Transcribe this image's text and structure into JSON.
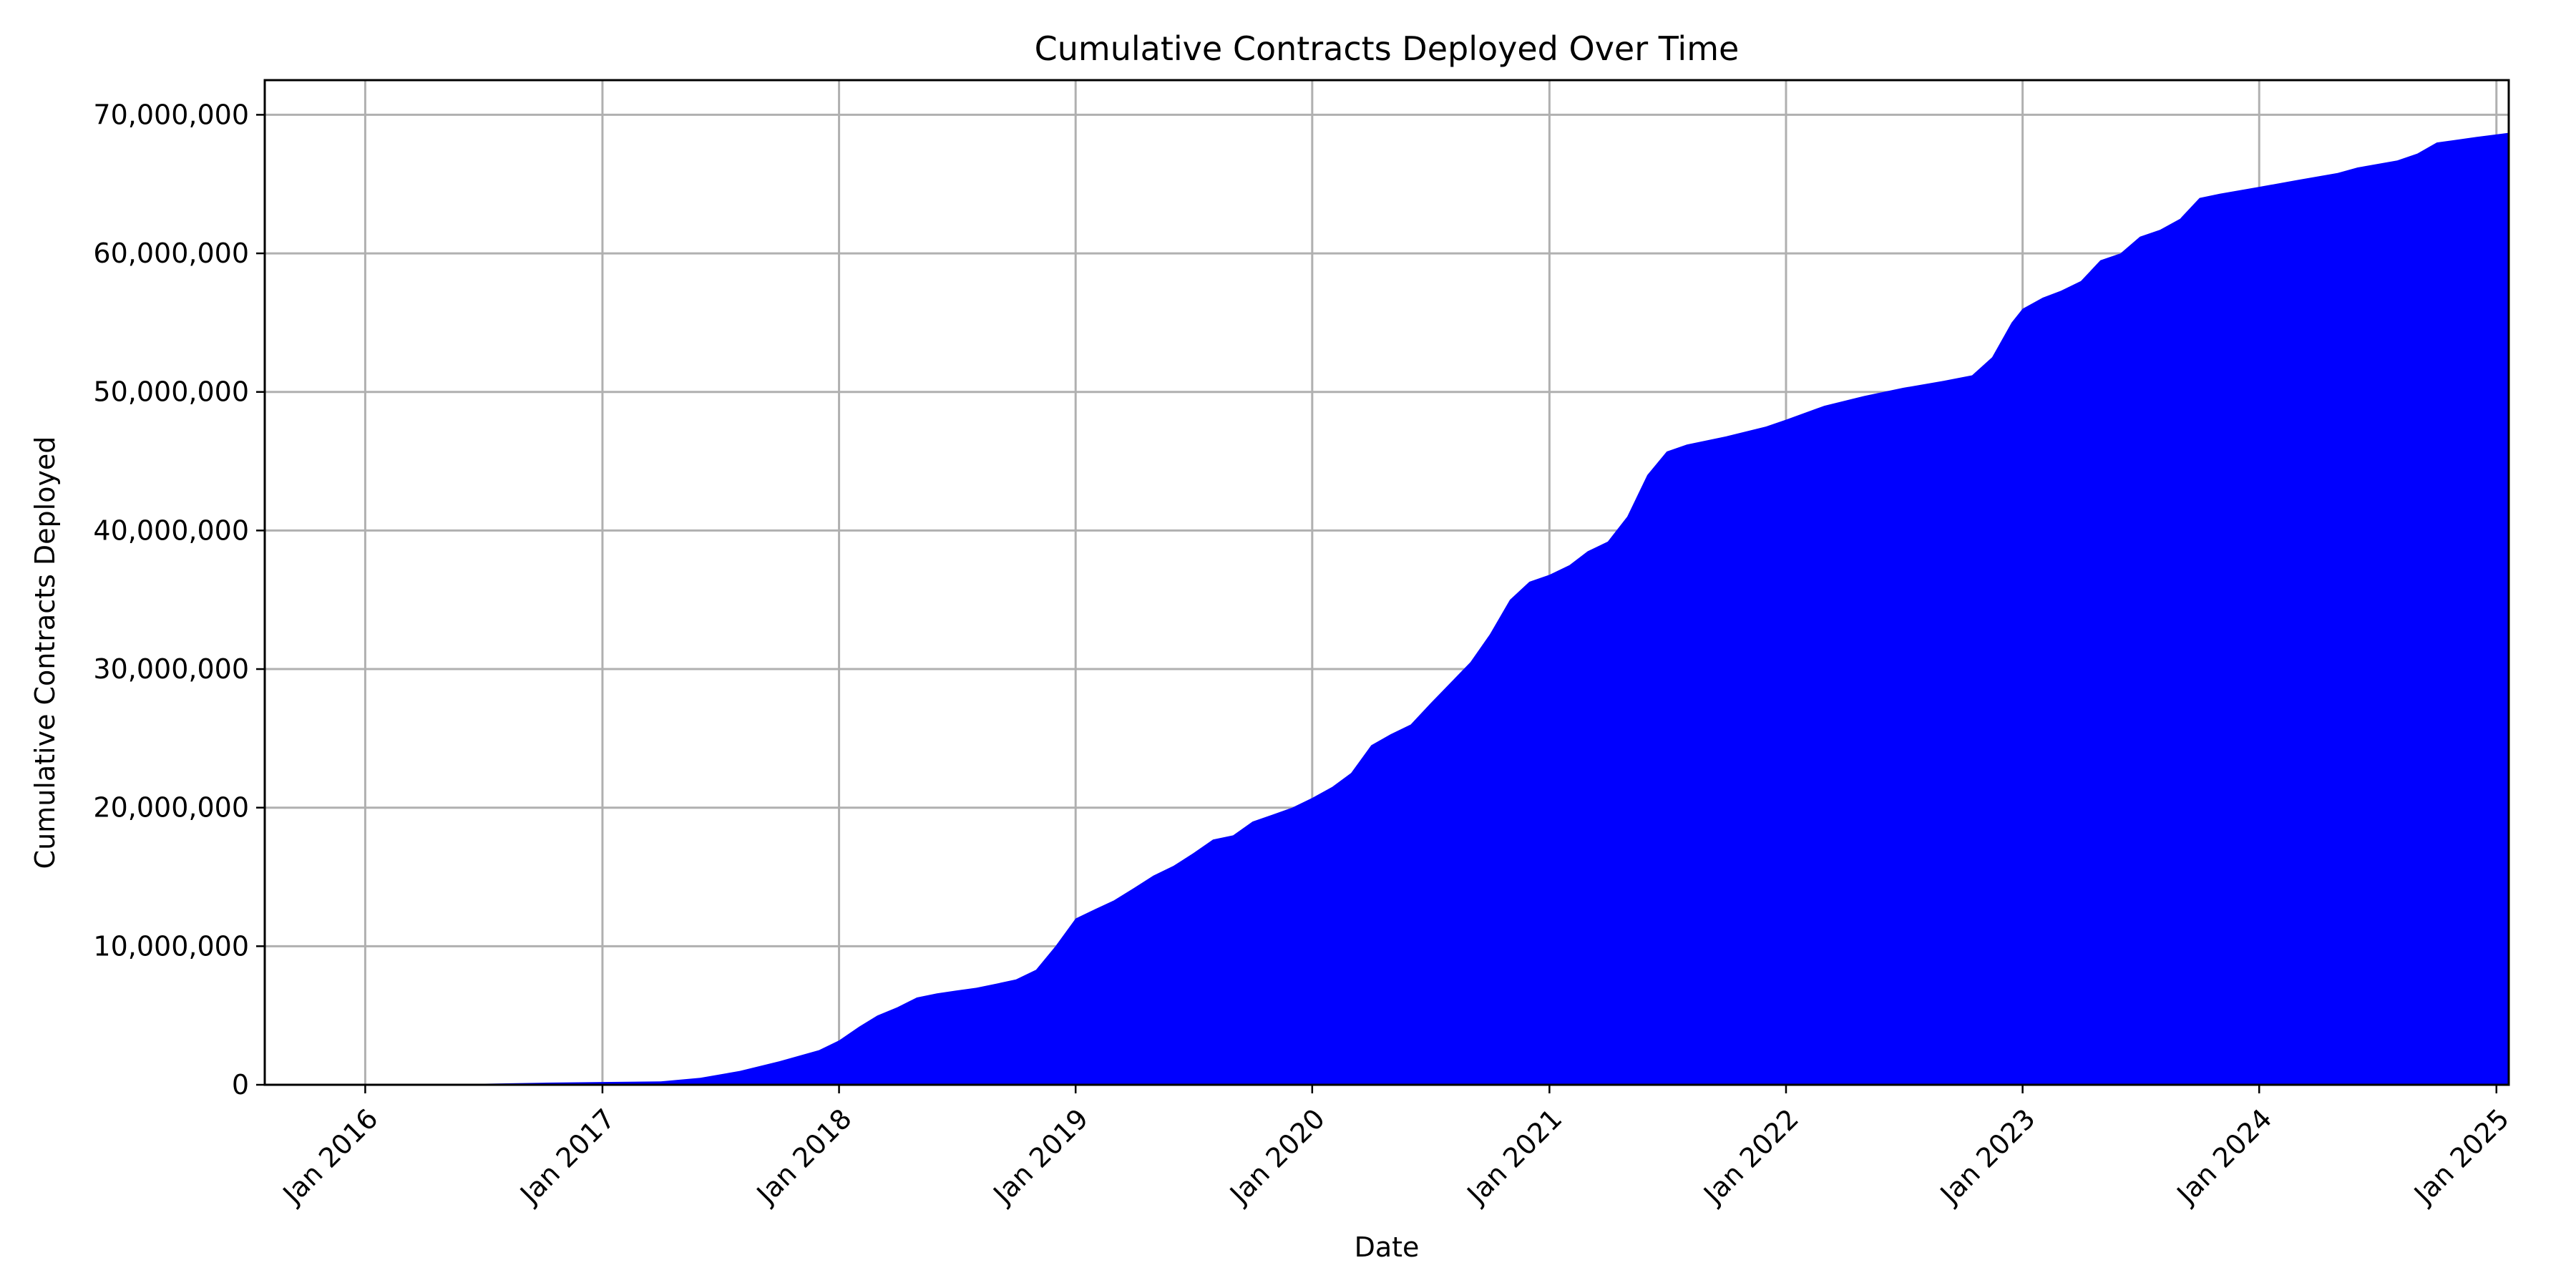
{
  "chart_data": {
    "type": "area",
    "title": "Cumulative Contracts Deployed Over Time",
    "xlabel": "Date",
    "ylabel": "Cumulative Contracts Deployed",
    "fill_color": "#0000ff",
    "grid": true,
    "legend": "none",
    "xlim": [
      "2015-07-30",
      "2025-01-20"
    ],
    "ylim": [
      0,
      72500000
    ],
    "x_ticks": [
      {
        "date": "2016-01-01",
        "label": "Jan 2016"
      },
      {
        "date": "2017-01-01",
        "label": "Jan 2017"
      },
      {
        "date": "2018-01-01",
        "label": "Jan 2018"
      },
      {
        "date": "2019-01-01",
        "label": "Jan 2019"
      },
      {
        "date": "2020-01-01",
        "label": "Jan 2020"
      },
      {
        "date": "2021-01-01",
        "label": "Jan 2021"
      },
      {
        "date": "2022-01-01",
        "label": "Jan 2022"
      },
      {
        "date": "2023-01-01",
        "label": "Jan 2023"
      },
      {
        "date": "2024-01-01",
        "label": "Jan 2024"
      },
      {
        "date": "2025-01-01",
        "label": "Jan 2025"
      }
    ],
    "y_ticks": [
      {
        "value": 0,
        "label": "0"
      },
      {
        "value": 10000000,
        "label": "10,000,000"
      },
      {
        "value": 20000000,
        "label": "20,000,000"
      },
      {
        "value": 30000000,
        "label": "30,000,000"
      },
      {
        "value": 40000000,
        "label": "40,000,000"
      },
      {
        "value": 50000000,
        "label": "50,000,000"
      },
      {
        "value": 60000000,
        "label": "60,000,000"
      },
      {
        "value": 70000000,
        "label": "70,000,000"
      }
    ],
    "series": [
      {
        "x": [
          "2015-07-30",
          "2016-06-01",
          "2016-10-01",
          "2017-01-01",
          "2017-04-01",
          "2017-06-01",
          "2017-08-01",
          "2017-10-01",
          "2017-12-01",
          "2018-01-01",
          "2018-02-01",
          "2018-03-01",
          "2018-04-01",
          "2018-05-01",
          "2018-06-01",
          "2018-07-01",
          "2018-08-01",
          "2018-09-01",
          "2018-10-01",
          "2018-11-01",
          "2018-12-01",
          "2019-01-01",
          "2019-02-01",
          "2019-03-01",
          "2019-04-01",
          "2019-05-01",
          "2019-06-01",
          "2019-07-01",
          "2019-08-01",
          "2019-09-01",
          "2019-10-01",
          "2019-11-01",
          "2019-12-01",
          "2020-01-01",
          "2020-02-01",
          "2020-03-01",
          "2020-04-01",
          "2020-05-01",
          "2020-06-01",
          "2020-07-01",
          "2020-08-01",
          "2020-09-01",
          "2020-10-01",
          "2020-11-01",
          "2020-12-01",
          "2021-01-01",
          "2021-02-01",
          "2021-03-01",
          "2021-04-01",
          "2021-05-01",
          "2021-06-01",
          "2021-07-01",
          "2021-08-01",
          "2021-10-01",
          "2021-12-01",
          "2022-01-01",
          "2022-03-01",
          "2022-05-01",
          "2022-07-01",
          "2022-09-01",
          "2022-10-15",
          "2022-11-15",
          "2022-12-15",
          "2023-01-01",
          "2023-02-01",
          "2023-03-01",
          "2023-04-01",
          "2023-05-01",
          "2023-06-01",
          "2023-07-01",
          "2023-08-01",
          "2023-09-01",
          "2023-10-01",
          "2023-11-01",
          "2024-01-01",
          "2024-03-01",
          "2024-05-01",
          "2024-06-01",
          "2024-08-01",
          "2024-09-01",
          "2024-10-01",
          "2024-11-01",
          "2024-12-01",
          "2025-01-20"
        ],
        "y": [
          0,
          50000,
          150000,
          200000,
          250000,
          500000,
          1000000,
          1700000,
          2500000,
          3200000,
          4200000,
          5000000,
          5600000,
          6300000,
          6600000,
          6800000,
          7000000,
          7300000,
          7600000,
          8300000,
          10000000,
          12000000,
          12700000,
          13300000,
          14200000,
          15100000,
          15800000,
          16700000,
          17700000,
          18000000,
          19000000,
          19500000,
          20000000,
          20700000,
          21500000,
          22500000,
          24500000,
          25300000,
          26000000,
          27500000,
          29000000,
          30500000,
          32500000,
          35000000,
          36300000,
          36800000,
          37500000,
          38500000,
          39200000,
          41000000,
          44000000,
          45700000,
          46200000,
          46800000,
          47500000,
          48000000,
          49000000,
          49700000,
          50300000,
          50800000,
          51200000,
          52500000,
          55000000,
          56000000,
          56800000,
          57300000,
          58000000,
          59500000,
          60000000,
          61200000,
          61700000,
          62500000,
          64000000,
          64300000,
          64800000,
          65300000,
          65800000,
          66200000,
          66700000,
          67200000,
          68000000,
          68200000,
          68400000,
          68700000
        ]
      }
    ]
  }
}
